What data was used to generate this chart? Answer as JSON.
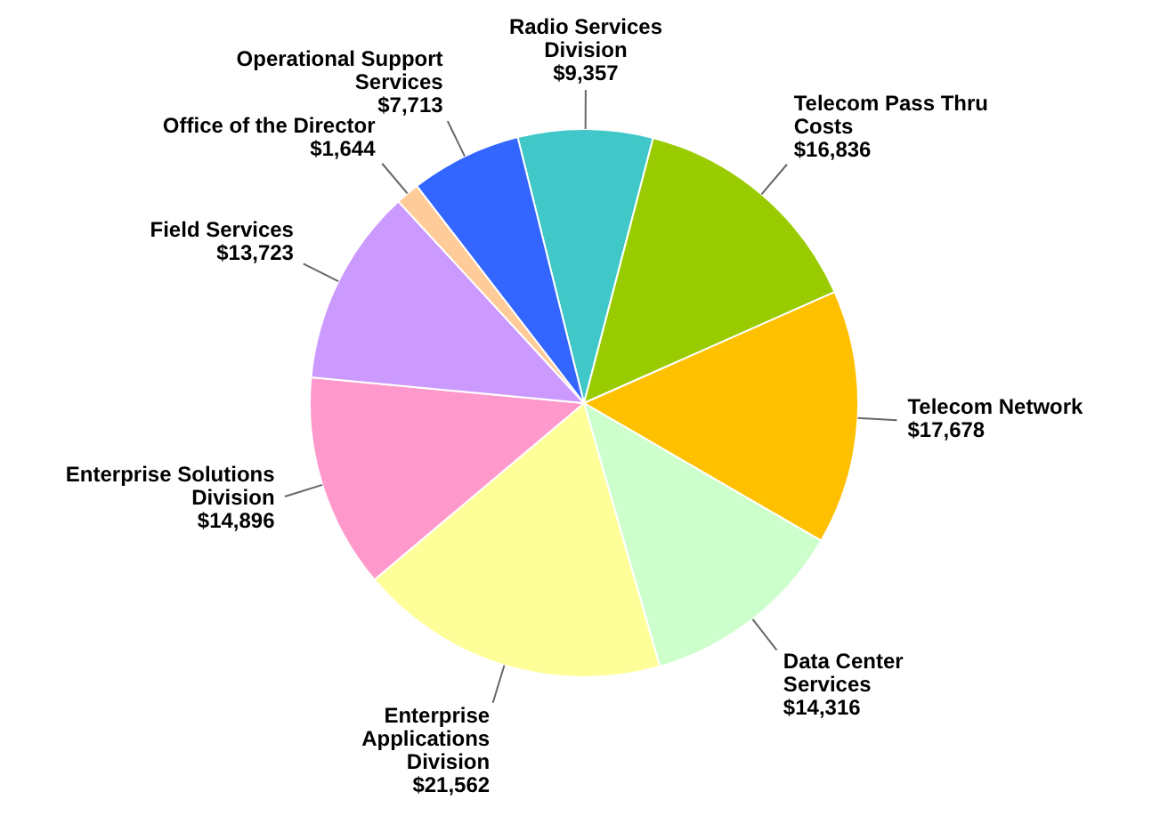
{
  "chart_data": {
    "type": "pie",
    "categories": [
      "Radio Services Division",
      "Telecom Pass Thru Costs",
      "Telecom Network",
      "Data Center Services",
      "Enterprise Applications Division",
      "Enterprise Solutions Division",
      "Field Services",
      "Office of the Director",
      "Operational Support Services"
    ],
    "values": [
      9357,
      16836,
      17678,
      14316,
      21562,
      14896,
      13723,
      1644,
      7713
    ],
    "value_labels": [
      "$9,357",
      "$16,836",
      "$17,678",
      "$14,316",
      "$21,562",
      "$14,896",
      "$13,723",
      "$1,644",
      "$7,713"
    ],
    "colors": [
      "#40c8c8",
      "#99cc00",
      "#ffc000",
      "#ccffcc",
      "#ffff99",
      "#ff99cc",
      "#cc99ff",
      "#ffcc99",
      "#3366ff"
    ],
    "legend": false
  }
}
